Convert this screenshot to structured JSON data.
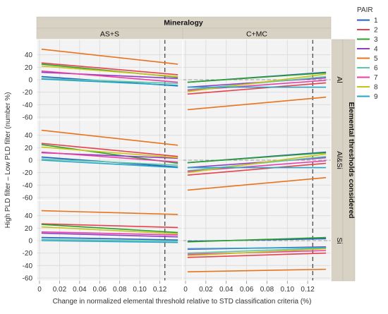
{
  "chart_data": {
    "type": "line",
    "title": "Mineralogy",
    "column_facets": [
      "AS+S",
      "C+MC"
    ],
    "row_facet_title": "Elemental thresholds considered",
    "row_facets": [
      "Al",
      "Al&Si",
      "Si"
    ],
    "xlabel": "Change in normalized elemental threshold relative to STD classification criteria (%)",
    "ylabel": "High PLD filter – Low PLD filter (number %)",
    "xlim": [
      0,
      0.14
    ],
    "ylim": [
      -60,
      60
    ],
    "x_ticks": [
      "0",
      "0.02",
      "0.04",
      "0.06",
      "0.08",
      "0.10",
      "0.12"
    ],
    "x_tick_values": [
      0,
      0.02,
      0.04,
      0.06,
      0.08,
      0.1,
      0.12
    ],
    "y_ticks": [
      -60,
      -40,
      -20,
      0,
      20,
      40
    ],
    "reference_x": 0.125,
    "legend_title": "PAIR",
    "legend_placement": "right",
    "series": [
      {
        "name": "1",
        "color": "#1f5fbf"
      },
      {
        "name": "2",
        "color": "#e8414c"
      },
      {
        "name": "3",
        "color": "#2ca02c"
      },
      {
        "name": "4",
        "color": "#8e3fc1"
      },
      {
        "name": "5",
        "color": "#e8741c"
      },
      {
        "name": "6",
        "color": "#5fc7a8"
      },
      {
        "name": "7",
        "color": "#e83fa6"
      },
      {
        "name": "8",
        "color": "#c9c21a"
      },
      {
        "name": "9",
        "color": "#25a6c9"
      }
    ],
    "panels": [
      {
        "row": "Al",
        "col": "AS+S",
        "lines": [
          {
            "s": 1,
            "y0": 5,
            "y1": -10
          },
          {
            "s": 2,
            "y0": 27,
            "y1": 8
          },
          {
            "s": 3,
            "y0": 25,
            "y1": 4
          },
          {
            "s": 4,
            "y0": 12,
            "y1": 2
          },
          {
            "s": 5,
            "y0": 49,
            "y1": 25
          },
          {
            "s": 6,
            "y0": 2,
            "y1": -6
          },
          {
            "s": 7,
            "y0": 14,
            "y1": -4
          },
          {
            "s": 8,
            "y0": 22,
            "y1": 5
          },
          {
            "s": 9,
            "y0": 1,
            "y1": -9
          }
        ]
      },
      {
        "row": "Al",
        "col": "C+MC",
        "lines": [
          {
            "s": 1,
            "y0": -4,
            "y1": 12
          },
          {
            "s": 2,
            "y0": -23,
            "y1": -5
          },
          {
            "s": 3,
            "y0": -4,
            "y1": 11
          },
          {
            "s": 4,
            "y0": -12,
            "y1": 3
          },
          {
            "s": 5,
            "y0": -48,
            "y1": -28
          },
          {
            "s": 6,
            "y0": -16,
            "y1": 5
          },
          {
            "s": 7,
            "y0": -17,
            "y1": -1
          },
          {
            "s": 8,
            "y0": -19,
            "y1": 9
          },
          {
            "s": 9,
            "y0": -12,
            "y1": -12
          }
        ]
      },
      {
        "row": "Al&Si",
        "col": "AS+S",
        "lines": [
          {
            "s": 1,
            "y0": 5,
            "y1": -11
          },
          {
            "s": 2,
            "y0": 27,
            "y1": 6
          },
          {
            "s": 3,
            "y0": 25,
            "y1": -5
          },
          {
            "s": 4,
            "y0": 12,
            "y1": 3
          },
          {
            "s": 5,
            "y0": 48,
            "y1": 24
          },
          {
            "s": 6,
            "y0": 2,
            "y1": -8
          },
          {
            "s": 7,
            "y0": 13,
            "y1": -3
          },
          {
            "s": 8,
            "y0": 21,
            "y1": 4
          },
          {
            "s": 9,
            "y0": 0,
            "y1": -12
          }
        ]
      },
      {
        "row": "Al&Si",
        "col": "C+MC",
        "lines": [
          {
            "s": 1,
            "y0": -4,
            "y1": 13
          },
          {
            "s": 2,
            "y0": -24,
            "y1": -5
          },
          {
            "s": 3,
            "y0": -4,
            "y1": 12
          },
          {
            "s": 4,
            "y0": -12,
            "y1": 4
          },
          {
            "s": 5,
            "y0": -48,
            "y1": -28
          },
          {
            "s": 6,
            "y0": -17,
            "y1": 6
          },
          {
            "s": 7,
            "y0": -18,
            "y1": -1
          },
          {
            "s": 8,
            "y0": -20,
            "y1": 10
          },
          {
            "s": 9,
            "y0": -12,
            "y1": -12
          }
        ]
      },
      {
        "row": "Si",
        "col": "AS+S",
        "lines": [
          {
            "s": 1,
            "y0": 5,
            "y1": 1
          },
          {
            "s": 2,
            "y0": 27,
            "y1": 21
          },
          {
            "s": 3,
            "y0": 26,
            "y1": 13
          },
          {
            "s": 4,
            "y0": 12,
            "y1": 6
          },
          {
            "s": 5,
            "y0": 48,
            "y1": 42
          },
          {
            "s": 6,
            "y0": 2,
            "y1": -1
          },
          {
            "s": 7,
            "y0": 14,
            "y1": 9
          },
          {
            "s": 8,
            "y0": 22,
            "y1": 11
          },
          {
            "s": 9,
            "y0": 0,
            "y1": -3
          }
        ]
      },
      {
        "row": "Si",
        "col": "C+MC",
        "lines": [
          {
            "s": 1,
            "y0": -1,
            "y1": 3
          },
          {
            "s": 2,
            "y0": -27,
            "y1": -20
          },
          {
            "s": 3,
            "y0": -2,
            "y1": 5
          },
          {
            "s": 4,
            "y0": -14,
            "y1": -10
          },
          {
            "s": 5,
            "y0": -50,
            "y1": -46
          },
          {
            "s": 6,
            "y0": -20,
            "y1": -12
          },
          {
            "s": 7,
            "y0": -22,
            "y1": -16
          },
          {
            "s": 8,
            "y0": -24,
            "y1": -13
          },
          {
            "s": 9,
            "y0": -13,
            "y1": -11
          }
        ]
      }
    ]
  }
}
